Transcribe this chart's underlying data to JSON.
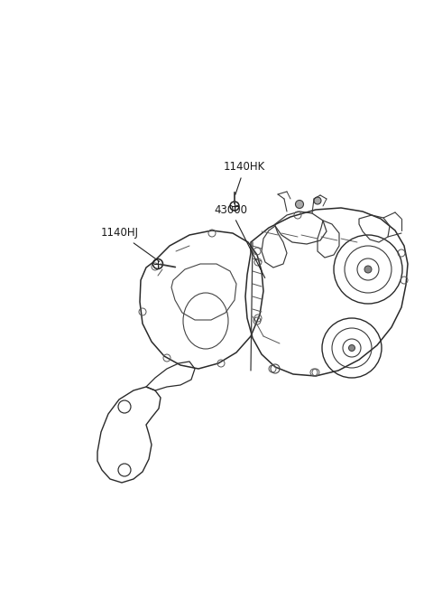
{
  "background_color": "#ffffff",
  "label_1140HJ": "1140HJ",
  "label_1140HK": "1140HK",
  "label_43000": "43000",
  "label_color": "#1a1a1a",
  "line_color": "#3a3a3a",
  "fig_width": 4.8,
  "fig_height": 6.55,
  "dpi": 100,
  "lw": 0.9,
  "label_fontsize": 8.5
}
